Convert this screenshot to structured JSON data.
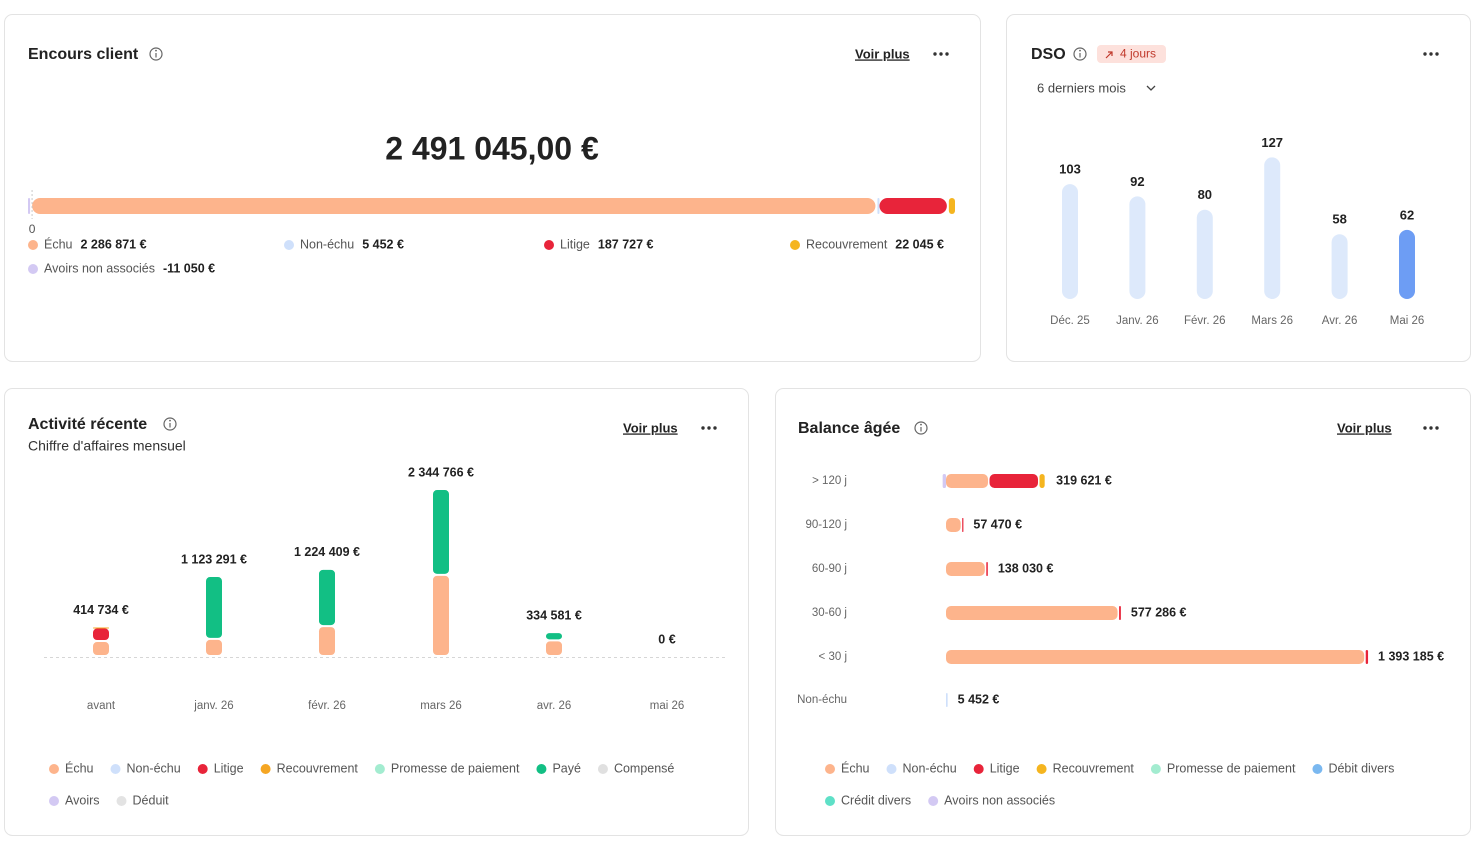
{
  "chart_data": [
    {
      "type": "stacked-hbar-total",
      "title": "Encours client",
      "link": "Voir plus",
      "total": "2 491 045,00 €",
      "xlim": [
        -11050,
        2502095
      ],
      "xticks": [
        0
      ],
      "series": [
        {
          "name": "Échu",
          "color": "#fdb48c",
          "values": [
            2286871
          ],
          "value_labels": [
            "2 286 871 €"
          ]
        },
        {
          "name": "Non-échu",
          "color": "#cfe0fb",
          "values": [
            5452
          ],
          "value_labels": [
            "5 452 €"
          ]
        },
        {
          "name": "Litige",
          "color": "#e8243a",
          "values": [
            187727
          ],
          "value_labels": [
            "187 727 €"
          ]
        },
        {
          "name": "Recouvrement",
          "color": "#f5b51f",
          "values": [
            22045
          ],
          "value_labels": [
            "22 045 €"
          ]
        },
        {
          "name": "Avoirs non associés",
          "color": "#d3c9f3",
          "values": [
            -11050
          ],
          "value_labels": [
            "-11 050 €"
          ]
        }
      ]
    },
    {
      "type": "bar",
      "title": "DSO",
      "badge": "4 jours",
      "period": "6 derniers mois",
      "categories": [
        "Déc. 25",
        "Janv. 26",
        "Févr. 26",
        "Mars 26",
        "Avr. 26",
        "Mai 26"
      ],
      "values": [
        103,
        92,
        80,
        127,
        58,
        62
      ],
      "colors": [
        "#dde9fb",
        "#dde9fb",
        "#dde9fb",
        "#dde9fb",
        "#dde9fb",
        "#6d9df4"
      ],
      "ylim": [
        0,
        130
      ]
    },
    {
      "type": "stacked-bar",
      "title": "Activité récente",
      "subtitle": "Chiffre d'affaires mensuel",
      "link": "Voir plus",
      "categories": [
        "avant",
        "janv. 26",
        "févr. 26",
        "mars 26",
        "avr. 26",
        "mai 26"
      ],
      "ylim": [
        0,
        2500000
      ],
      "series": [
        {
          "name": "Échu",
          "color": "#fdb48c",
          "values": [
            210000,
            240000,
            420000,
            1140000,
            220000,
            0
          ]
        },
        {
          "name": "Non-échu",
          "color": "#cfe0fb",
          "values": [
            0,
            0,
            0,
            0,
            0,
            0
          ]
        },
        {
          "name": "Litige",
          "color": "#e8243a",
          "values": [
            190000,
            0,
            0,
            0,
            0,
            0
          ]
        },
        {
          "name": "Recouvrement",
          "color": "#f5a623",
          "values": [
            14734,
            0,
            0,
            0,
            0,
            0
          ]
        },
        {
          "name": "Promesse de paiement",
          "color": "#a3ecd0",
          "values": [
            0,
            0,
            0,
            0,
            0,
            0
          ]
        },
        {
          "name": "Payé",
          "color": "#12bf84",
          "values": [
            0,
            883291,
            804409,
            1204766,
            114581,
            0
          ]
        },
        {
          "name": "Compensé",
          "color": "#e0e0e0",
          "values": [
            0,
            0,
            0,
            0,
            0,
            0
          ]
        },
        {
          "name": "Avoirs",
          "color": "#d3c9f3",
          "values": [
            0,
            0,
            0,
            0,
            0,
            0
          ]
        },
        {
          "name": "Déduit",
          "color": "#e3e3e3",
          "values": [
            0,
            0,
            0,
            0,
            0,
            0
          ]
        }
      ],
      "totals": [
        414734,
        1123291,
        1224409,
        2344766,
        334581,
        0
      ],
      "total_labels": [
        "414 734 €",
        "1 123 291 €",
        "1 224 409 €",
        "2 344 766 €",
        "334 581 €",
        "0 €"
      ]
    },
    {
      "type": "stacked-hbar",
      "title": "Balance âgée",
      "link": "Voir plus",
      "categories": [
        "> 120 j",
        "90-120 j",
        "60-90 j",
        "30-60 j",
        "< 30 j",
        "Non-échu"
      ],
      "xlim": [
        0,
        1700000
      ],
      "series": [
        {
          "name": "Échu",
          "color": "#fdb48c",
          "values": [
            143626,
            53470,
            133030,
            571286,
            1385458,
            0
          ]
        },
        {
          "name": "Non-échu",
          "color": "#cfe0fb",
          "values": [
            0,
            0,
            0,
            0,
            0,
            5452
          ]
        },
        {
          "name": "Litige",
          "color": "#e8243a",
          "values": [
            165000,
            4000,
            5000,
            6000,
            7727,
            0
          ]
        },
        {
          "name": "Recouvrement",
          "color": "#f5b51f",
          "values": [
            22045,
            0,
            0,
            0,
            0,
            0
          ]
        },
        {
          "name": "Promesse de paiement",
          "color": "#a3ecd0",
          "values": [
            0,
            0,
            0,
            0,
            0,
            0
          ]
        },
        {
          "name": "Débit divers",
          "color": "#7ab8f0",
          "values": [
            0,
            0,
            0,
            0,
            0,
            0
          ]
        },
        {
          "name": "Crédit divers",
          "color": "#5ee0c7",
          "values": [
            0,
            0,
            0,
            0,
            0,
            0
          ]
        },
        {
          "name": "Avoirs non associés",
          "color": "#d3c9f3",
          "values": [
            -11050,
            0,
            0,
            0,
            0,
            0
          ]
        }
      ],
      "totals": [
        319621,
        57470,
        138030,
        577286,
        1393185,
        5452
      ],
      "total_labels": [
        "319 621 €",
        "57 470 €",
        "138 030 €",
        "577 286 €",
        "1 393 185 €",
        "5 452 €"
      ]
    }
  ]
}
